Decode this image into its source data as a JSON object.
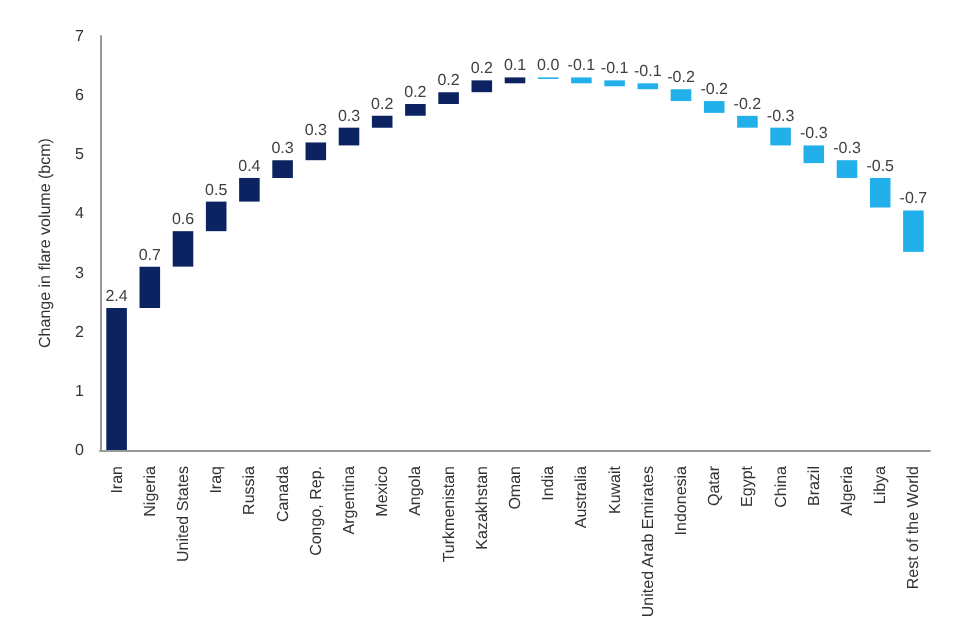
{
  "chart_data": {
    "type": "bar",
    "ylabel": "Change in flare volume (bcm)",
    "categories": [
      "Iran",
      "Nigeria",
      "United States",
      "Iraq",
      "Russia",
      "Canada",
      "Congo, Rep.",
      "Argentina",
      "Mexico",
      "Angola",
      "Turkmenistan",
      "Kazakhstan",
      "Oman",
      "India",
      "Australia",
      "Kuwait",
      "United Arab Emirates",
      "Indonesia",
      "Qatar",
      "Egypt",
      "China",
      "Brazil",
      "Algeria",
      "Libya",
      "Rest of the World"
    ],
    "values": [
      2.4,
      0.7,
      0.6,
      0.5,
      0.4,
      0.3,
      0.3,
      0.3,
      0.2,
      0.2,
      0.2,
      0.2,
      0.1,
      0.0,
      -0.1,
      -0.1,
      -0.1,
      -0.2,
      -0.2,
      -0.2,
      -0.3,
      -0.3,
      -0.3,
      -0.5,
      -0.7
    ],
    "base": [
      0,
      2.4,
      3.1,
      3.7,
      4.2,
      4.6,
      4.9,
      5.15,
      5.45,
      5.65,
      5.85,
      6.05,
      6.2,
      6.3,
      6.3,
      6.25,
      6.2,
      6.1,
      5.9,
      5.65,
      5.45,
      5.15,
      4.9,
      4.6,
      4.05
    ],
    "value_labels": [
      "2.4",
      "0.7",
      "0.6",
      "0.5",
      "0.4",
      "0.3",
      "0.3",
      "0.3",
      "0.2",
      "0.2",
      "0.2",
      "0.2",
      "0.1",
      "0.0",
      "-0.1",
      "-0.1",
      "-0.1",
      "-0.2",
      "-0.2",
      "-0.2",
      "-0.3",
      "-0.3",
      "-0.3",
      "-0.5",
      "-0.7"
    ],
    "colors": [
      "#0b2461",
      "#0b2461",
      "#0b2461",
      "#0b2461",
      "#0b2461",
      "#0b2461",
      "#0b2461",
      "#0b2461",
      "#0b2461",
      "#0b2461",
      "#0b2461",
      "#0b2461",
      "#0b2461",
      "#22b0ea",
      "#22b0ea",
      "#22b0ea",
      "#22b0ea",
      "#22b0ea",
      "#22b0ea",
      "#22b0ea",
      "#22b0ea",
      "#22b0ea",
      "#22b0ea",
      "#22b0ea",
      "#22b0ea"
    ],
    "ylim": [
      0,
      7
    ],
    "yticks": [
      0,
      1,
      2,
      3,
      4,
      5,
      6,
      7
    ],
    "grid": false
  }
}
